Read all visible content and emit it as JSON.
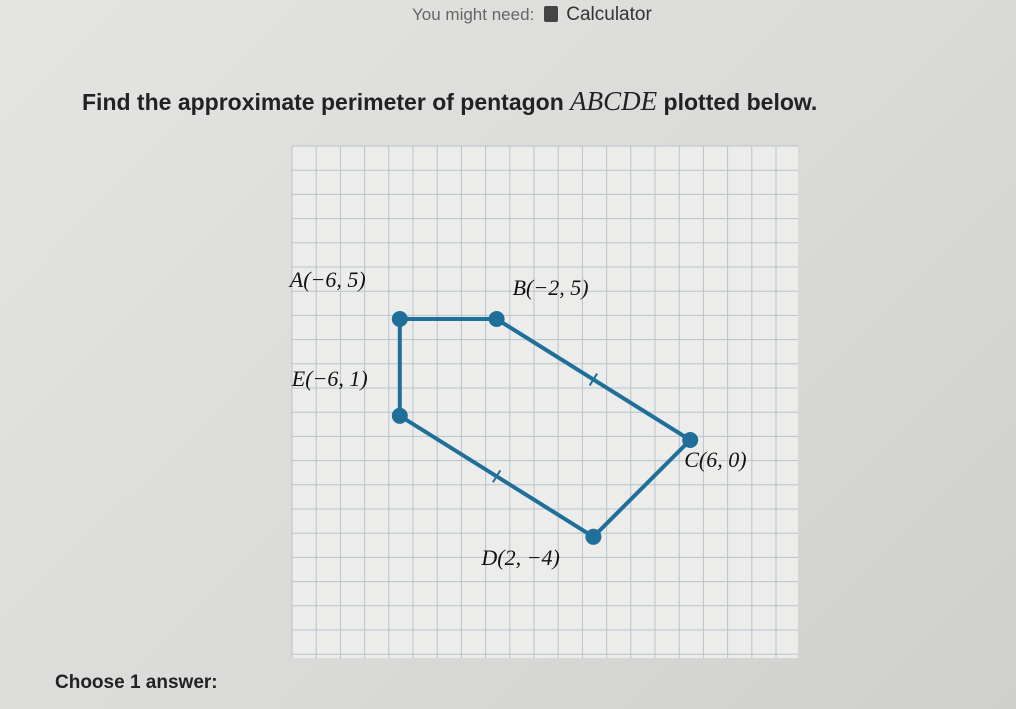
{
  "header": {
    "hint_label": "You might need:",
    "tool": "Calculator"
  },
  "question": {
    "before": "Find the approximate perimeter of pentagon ",
    "math": "ABCDE",
    "after": " plotted below."
  },
  "points": [
    {
      "label": "A(−6, 5)",
      "x": -6,
      "y": 5
    },
    {
      "label": "B(−2, 5)",
      "x": -2,
      "y": 5
    },
    {
      "label": "C(6, 0)",
      "x": 6,
      "y": 0
    },
    {
      "label": "D(2, −4)",
      "x": 2,
      "y": -4
    },
    {
      "label": "E(−6, 1)",
      "x": -6,
      "y": 1
    }
  ],
  "prompt": "Choose 1 answer:"
}
